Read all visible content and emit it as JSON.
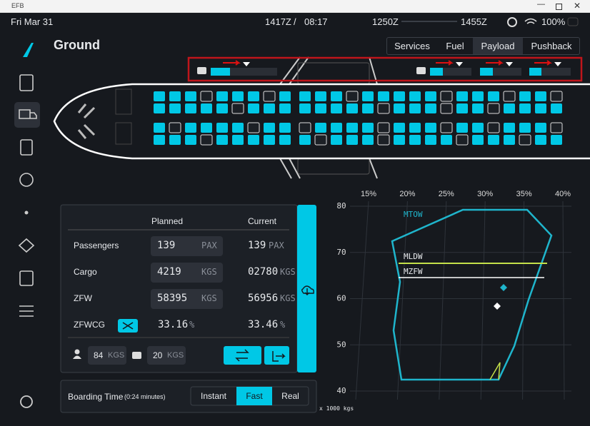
{
  "window": {
    "title": "EFB"
  },
  "status_bar": {
    "date": "Fri Mar 31",
    "utc_time": "1417Z",
    "separator": "/",
    "local_time": "08:17",
    "departure_time": "1250Z",
    "arrival_time": "1455Z",
    "battery": "100%"
  },
  "page": {
    "title": "Ground",
    "tabs": [
      "Services",
      "Fuel",
      "Payload",
      "Pushback"
    ]
  },
  "payload_table": {
    "headers": [
      "Planned",
      "Current"
    ],
    "rows": [
      {
        "label": "Passengers",
        "planned": "139",
        "planned_unit": "PAX",
        "current": "139",
        "current_unit": "PAX"
      },
      {
        "label": "Cargo",
        "planned": "4219",
        "planned_unit": "KGS",
        "current": "02780",
        "current_unit": "KGS"
      },
      {
        "label": "ZFW",
        "planned": "58395",
        "planned_unit": "KGS",
        "current": "56956",
        "current_unit": "KGS"
      },
      {
        "label": "ZFWCG",
        "planned": "33.16",
        "planned_unit": "%",
        "current": "33.46",
        "current_unit": "%"
      }
    ]
  },
  "per_unit": {
    "passenger_weight": "84",
    "passenger_unit": "KGS",
    "bag_weight": "20",
    "bag_unit": "KGS"
  },
  "boarding": {
    "label": "Boarding Time",
    "duration": "(0:24 minutes)",
    "options": [
      "Instant",
      "Fast",
      "Real"
    ]
  },
  "cg_chart": {
    "mac_labels": [
      "15%",
      "20%",
      "25%",
      "30%",
      "35%",
      "40%"
    ],
    "weight_labels": [
      "80",
      "70",
      "60",
      "50",
      "40"
    ],
    "unit_label": "x 1000 kgs",
    "envelopes": [
      "MTOW",
      "MLDW",
      "MZFW"
    ]
  }
}
